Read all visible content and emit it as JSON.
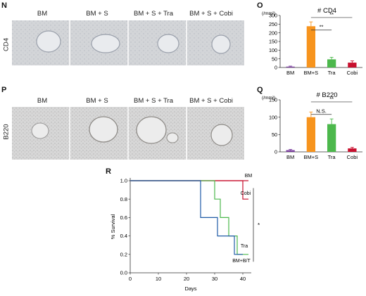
{
  "panels": {
    "N": {
      "letter": "N",
      "row_label": "CD4",
      "columns": [
        "BM",
        "BM + S",
        "BM + S + Tra",
        "BM + S + Cobi"
      ]
    },
    "O": {
      "letter": "O",
      "chart_data": {
        "type": "bar",
        "title": "# CD4",
        "ylabel": "(/mm²)",
        "categories": [
          "BM",
          "BM+S",
          "Tra",
          "Cobi"
        ],
        "values": [
          5,
          238,
          47,
          28
        ],
        "errors": [
          3,
          25,
          12,
          10
        ],
        "colors": [
          "#7b3f9e",
          "#f7941d",
          "#4cb84c",
          "#c8102e"
        ],
        "ylim": [
          0,
          300
        ],
        "yticks": [
          0,
          50,
          100,
          150,
          200,
          250,
          300
        ],
        "significance": [
          {
            "from": "BM+S",
            "to": "Tra",
            "label": "**"
          },
          {
            "from": "BM+S",
            "to": "Cobi",
            "label": "**"
          }
        ]
      }
    },
    "P": {
      "letter": "P",
      "row_label": "B220",
      "columns": [
        "BM",
        "BM + S",
        "BM + S + Tra",
        "BM + S + Cobi"
      ]
    },
    "Q": {
      "letter": "Q",
      "chart_data": {
        "type": "bar",
        "title": "# B220",
        "ylabel": "(/mm²)",
        "categories": [
          "BM",
          "BM+S",
          "Tra",
          "Cobi"
        ],
        "values": [
          5,
          100,
          80,
          10
        ],
        "errors": [
          2,
          15,
          15,
          3
        ],
        "colors": [
          "#7b3f9e",
          "#f7941d",
          "#4cb84c",
          "#c8102e"
        ],
        "ylim": [
          0,
          150
        ],
        "yticks": [
          0,
          50,
          100,
          150
        ],
        "significance": [
          {
            "from": "BM+S",
            "to": "Tra",
            "label": "N.S."
          },
          {
            "from": "BM+S",
            "to": "Cobi",
            "label": "**"
          }
        ]
      }
    },
    "R": {
      "letter": "R",
      "chart_data": {
        "type": "line",
        "xlabel": "Days",
        "ylabel": "% Survival",
        "xlim": [
          0,
          43
        ],
        "ylim": [
          0,
          1.0
        ],
        "xticks": [
          0,
          10,
          20,
          30,
          40
        ],
        "yticks": [
          0.0,
          0.2,
          0.4,
          0.6,
          0.8,
          1.0
        ],
        "series": [
          {
            "name": "BM",
            "color": "#c8102e",
            "x": [
              0,
              42
            ],
            "y": [
              1.0,
              1.0
            ]
          },
          {
            "name": "Cobi",
            "color": "#c8102e",
            "x": [
              0,
              40,
              40,
              42
            ],
            "y": [
              1.0,
              1.0,
              0.8,
              0.8
            ]
          },
          {
            "name": "Tra",
            "color": "#4cb84c",
            "x": [
              0,
              30,
              30,
              32,
              32,
              35,
              35,
              38,
              38,
              42
            ],
            "y": [
              1.0,
              1.0,
              0.8,
              0.8,
              0.6,
              0.6,
              0.4,
              0.4,
              0.2,
              0.2
            ]
          },
          {
            "name": "BM+B/T",
            "color": "#1f5aa6",
            "x": [
              0,
              25,
              25,
              31,
              31,
              37,
              37,
              40
            ],
            "y": [
              1.0,
              1.0,
              0.6,
              0.6,
              0.4,
              0.4,
              0.2,
              0.2
            ]
          }
        ],
        "significance": "*"
      }
    }
  }
}
